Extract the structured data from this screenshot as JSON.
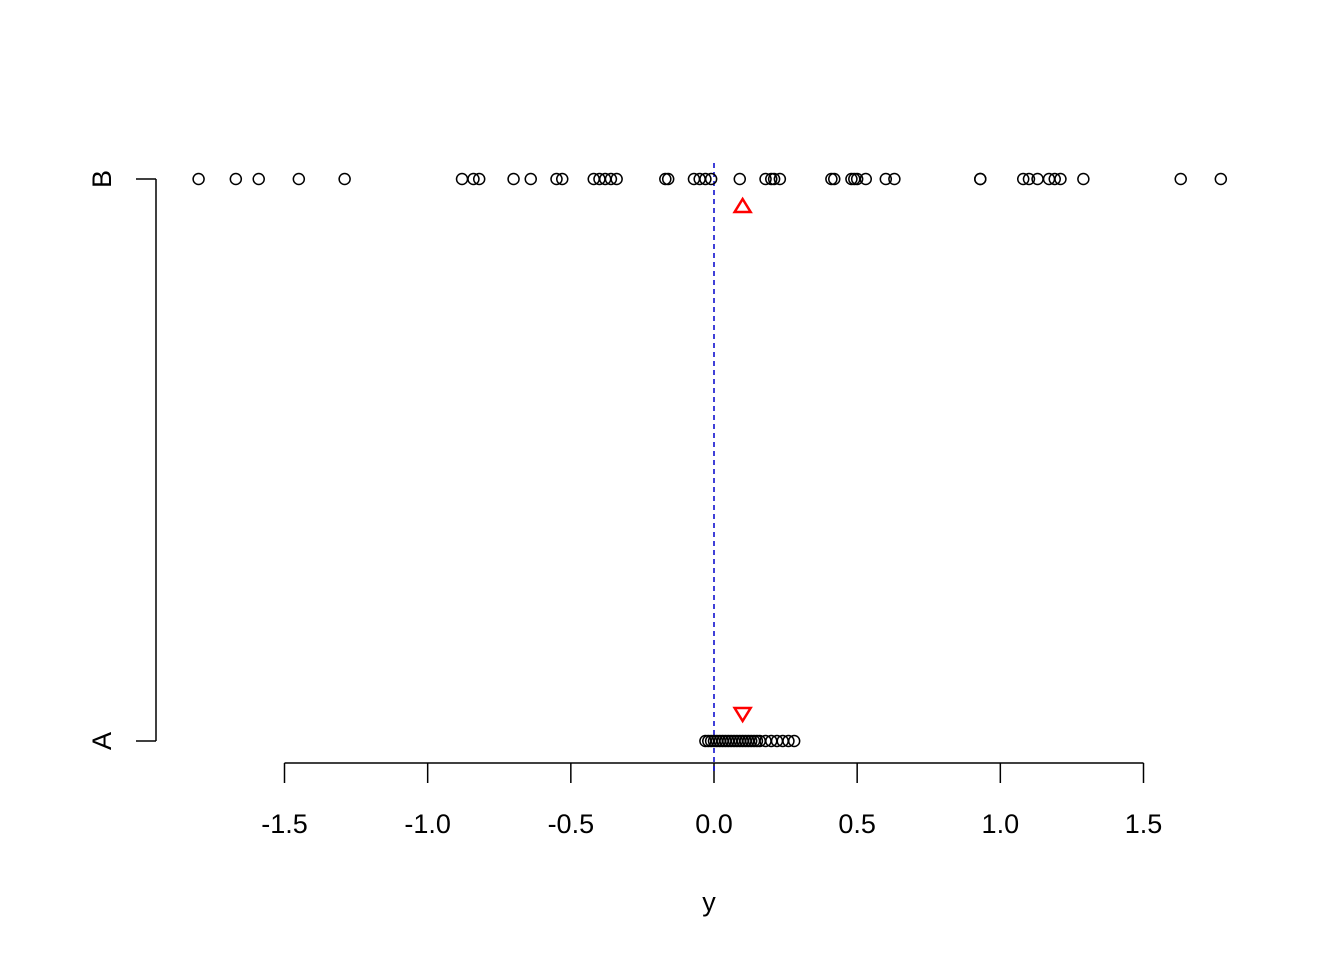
{
  "chart_data": {
    "type": "scatter",
    "title": "",
    "xlabel": "y",
    "ylabel": "",
    "xlim": [
      -1.8,
      1.78
    ],
    "grid": false,
    "legend": "none",
    "x_ticks": [
      -1.5,
      -1.0,
      -0.5,
      0.0,
      0.5,
      1.0,
      1.5
    ],
    "x_tick_labels": [
      "-1.5",
      "-1.0",
      "-0.5",
      "0.0",
      "0.5",
      "1.0",
      "1.5"
    ],
    "categories": [
      "A",
      "B"
    ],
    "reference_line": {
      "x": 0.0,
      "color": "#0000cc",
      "style": "dashed"
    },
    "series": [
      {
        "category": "B",
        "values": [
          -1.8,
          -1.67,
          -1.59,
          -1.45,
          -1.29,
          -0.88,
          -0.84,
          -0.82,
          -0.7,
          -0.64,
          -0.55,
          -0.53,
          -0.42,
          -0.4,
          -0.38,
          -0.36,
          -0.34,
          -0.17,
          -0.16,
          -0.07,
          -0.05,
          -0.03,
          -0.01,
          0.09,
          0.18,
          0.2,
          0.21,
          0.23,
          0.41,
          0.42,
          0.48,
          0.49,
          0.5,
          0.53,
          0.6,
          0.63,
          0.93,
          0.93,
          1.08,
          1.1,
          1.13,
          1.17,
          1.19,
          1.21,
          1.29,
          1.63,
          1.77
        ],
        "mean": 0.1,
        "mean_marker": "triangle-up",
        "mean_color": "#ff0000"
      },
      {
        "category": "A",
        "values": [
          -0.03,
          -0.02,
          -0.01,
          0.0,
          0.01,
          0.02,
          0.03,
          0.04,
          0.05,
          0.06,
          0.07,
          0.08,
          0.09,
          0.1,
          0.11,
          0.12,
          0.13,
          0.14,
          0.15,
          0.16,
          0.18,
          0.2,
          0.22,
          0.24,
          0.26,
          0.28
        ],
        "mean": 0.1,
        "mean_marker": "triangle-down",
        "mean_color": "#ff0000"
      }
    ]
  }
}
